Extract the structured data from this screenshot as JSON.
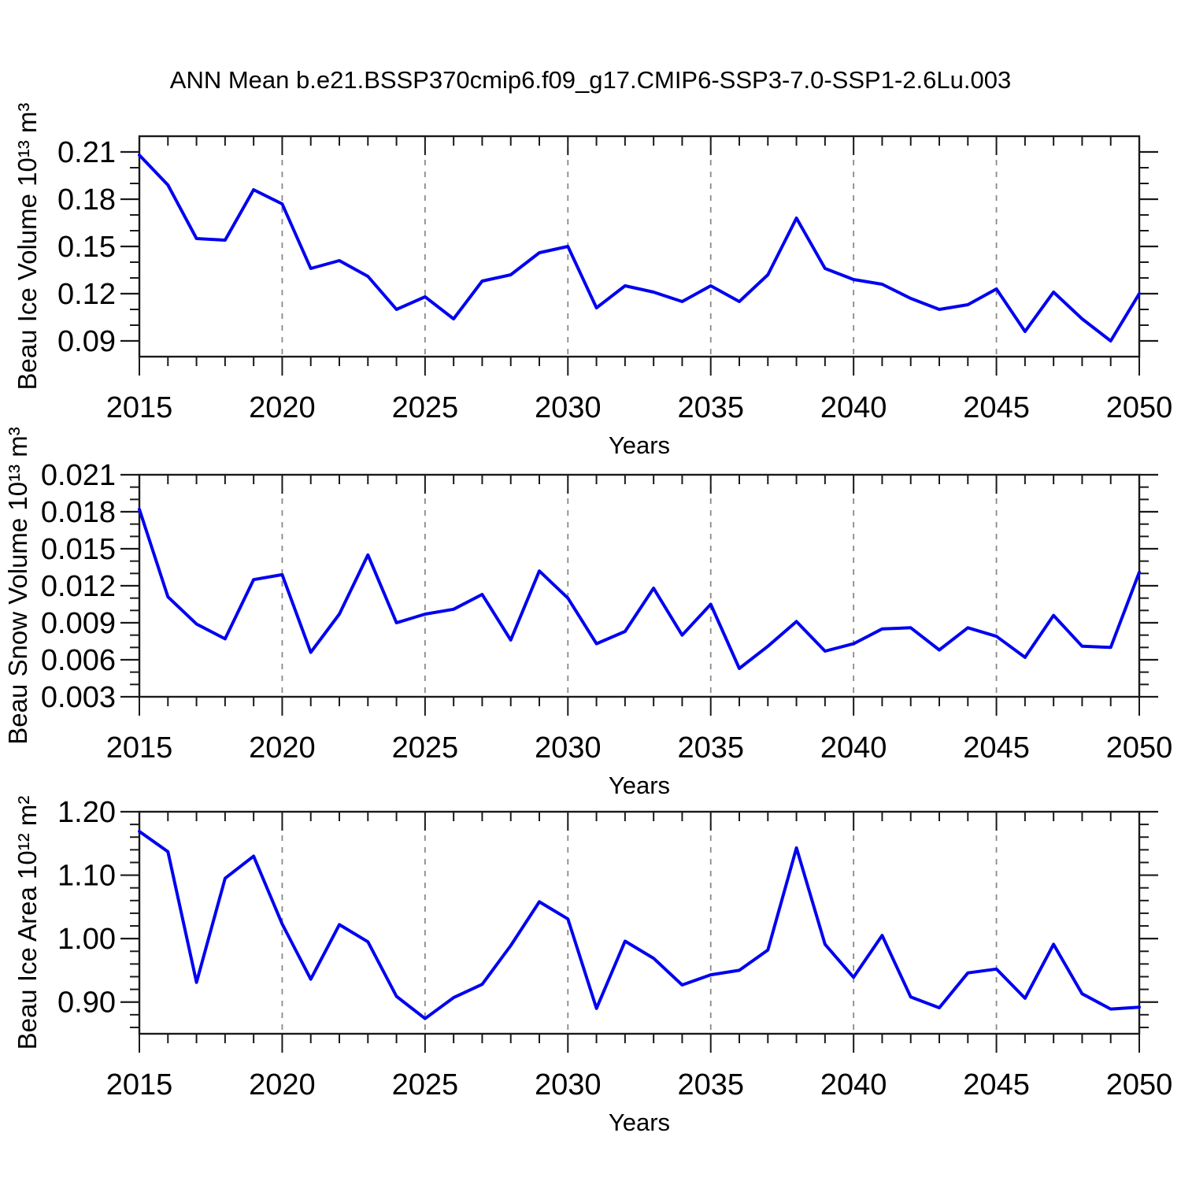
{
  "title": "ANN Mean b.e21.BSSP370cmip6.f09_g17.CMIP6-SSP3-7.0-SSP1-2.6Lu.003",
  "colors": {
    "line": "#0000f0",
    "grid": "#8a8a8a",
    "axis": "#1a1a1a",
    "text": "#000000",
    "background": "#ffffff"
  },
  "chart_data": [
    {
      "name": "beau-ice-volume",
      "type": "line",
      "title": "",
      "xlabel": "Years",
      "ylabel": "Beau Ice Volume 10¹³ m³",
      "x": [
        2015,
        2016,
        2017,
        2018,
        2019,
        2020,
        2021,
        2022,
        2023,
        2024,
        2025,
        2026,
        2027,
        2028,
        2029,
        2030,
        2031,
        2032,
        2033,
        2034,
        2035,
        2036,
        2037,
        2038,
        2039,
        2040,
        2041,
        2042,
        2043,
        2044,
        2045,
        2046,
        2047,
        2048,
        2049,
        2050
      ],
      "values": [
        0.208,
        0.189,
        0.155,
        0.154,
        0.186,
        0.177,
        0.136,
        0.141,
        0.131,
        0.11,
        0.118,
        0.104,
        0.128,
        0.132,
        0.146,
        0.15,
        0.111,
        0.125,
        0.121,
        0.115,
        0.125,
        0.115,
        0.132,
        0.168,
        0.136,
        0.129,
        0.126,
        0.117,
        0.11,
        0.113,
        0.123,
        0.096,
        0.121,
        0.104,
        0.09,
        0.12
      ],
      "xlim": [
        2015,
        2050
      ],
      "ylim": [
        0.08,
        0.22
      ],
      "xticks": [
        2015,
        2020,
        2025,
        2030,
        2035,
        2040,
        2045,
        2050
      ],
      "xtick_labels": [
        "2015",
        "2020",
        "2025",
        "2030",
        "2035",
        "2040",
        "2045",
        "2050"
      ],
      "yticks": [
        0.09,
        0.12,
        0.15,
        0.18,
        0.21
      ],
      "ytick_labels": [
        "0.09",
        "0.12",
        "0.15",
        "0.18",
        "0.21"
      ],
      "y_minor_step": 0.01,
      "x_minor_step": 1,
      "grid_years": [
        2020,
        2025,
        2030,
        2035,
        2040,
        2045
      ],
      "grid_style": "vertical-dashed",
      "legend": "none"
    },
    {
      "name": "beau-snow-volume",
      "type": "line",
      "title": "",
      "xlabel": "Years",
      "ylabel": "Beau Snow Volume 10¹³ m³",
      "x": [
        2015,
        2016,
        2017,
        2018,
        2019,
        2020,
        2021,
        2022,
        2023,
        2024,
        2025,
        2026,
        2027,
        2028,
        2029,
        2030,
        2031,
        2032,
        2033,
        2034,
        2035,
        2036,
        2037,
        2038,
        2039,
        2040,
        2041,
        2042,
        2043,
        2044,
        2045,
        2046,
        2047,
        2048,
        2049,
        2050
      ],
      "values": [
        0.0182,
        0.0111,
        0.0089,
        0.0077,
        0.0125,
        0.0129,
        0.0066,
        0.0097,
        0.0145,
        0.009,
        0.0097,
        0.0101,
        0.0113,
        0.0076,
        0.0132,
        0.011,
        0.0073,
        0.0083,
        0.0118,
        0.008,
        0.0105,
        0.0053,
        0.0071,
        0.0091,
        0.0067,
        0.0073,
        0.0085,
        0.0086,
        0.0068,
        0.0086,
        0.0079,
        0.0062,
        0.0096,
        0.0071,
        0.007,
        0.0131
      ],
      "xlim": [
        2015,
        2050
      ],
      "ylim": [
        0.003,
        0.021
      ],
      "xticks": [
        2015,
        2020,
        2025,
        2030,
        2035,
        2040,
        2045,
        2050
      ],
      "xtick_labels": [
        "2015",
        "2020",
        "2025",
        "2030",
        "2035",
        "2040",
        "2045",
        "2050"
      ],
      "yticks": [
        0.003,
        0.006,
        0.009,
        0.012,
        0.015,
        0.018,
        0.021
      ],
      "ytick_labels": [
        "0.003",
        "0.006",
        "0.009",
        "0.012",
        "0.015",
        "0.018",
        "0.021"
      ],
      "y_minor_step": 0.001,
      "x_minor_step": 1,
      "grid_years": [
        2020,
        2025,
        2030,
        2035,
        2040,
        2045
      ],
      "grid_style": "vertical-dashed",
      "legend": "none"
    },
    {
      "name": "beau-ice-area",
      "type": "line",
      "title": "",
      "xlabel": "Years",
      "ylabel": "Beau Ice Area 10¹² m²",
      "x": [
        2015,
        2016,
        2017,
        2018,
        2019,
        2020,
        2021,
        2022,
        2023,
        2024,
        2025,
        2026,
        2027,
        2028,
        2029,
        2030,
        2031,
        2032,
        2033,
        2034,
        2035,
        2036,
        2037,
        2038,
        2039,
        2040,
        2041,
        2042,
        2043,
        2044,
        2045,
        2046,
        2047,
        2048,
        2049,
        2050
      ],
      "values": [
        1.169,
        1.137,
        0.931,
        1.095,
        1.13,
        1.023,
        0.936,
        1.022,
        0.995,
        0.909,
        0.874,
        0.907,
        0.928,
        0.989,
        1.058,
        1.031,
        0.89,
        0.996,
        0.969,
        0.927,
        0.943,
        0.95,
        0.982,
        1.143,
        0.991,
        0.939,
        1.005,
        0.908,
        0.891,
        0.946,
        0.952,
        0.906,
        0.991,
        0.913,
        0.889,
        0.892
      ],
      "xlim": [
        2015,
        2050
      ],
      "ylim": [
        0.85,
        1.2
      ],
      "xticks": [
        2015,
        2020,
        2025,
        2030,
        2035,
        2040,
        2045,
        2050
      ],
      "xtick_labels": [
        "2015",
        "2020",
        "2025",
        "2030",
        "2035",
        "2040",
        "2045",
        "2050"
      ],
      "yticks": [
        0.9,
        1.0,
        1.1,
        1.2
      ],
      "ytick_labels": [
        "0.90",
        "1.00",
        "1.10",
        "1.20"
      ],
      "y_minor_step": 0.02,
      "x_minor_step": 1,
      "grid_years": [
        2020,
        2025,
        2030,
        2035,
        2040,
        2045
      ],
      "grid_style": "vertical-dashed",
      "legend": "none"
    }
  ]
}
